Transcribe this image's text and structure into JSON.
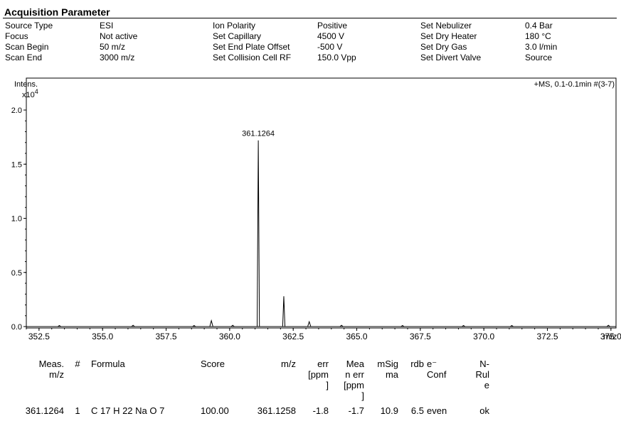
{
  "acquisition": {
    "title": "Acquisition Parameter",
    "columns": [
      {
        "labels": [
          "Source Type",
          "Focus",
          "Scan Begin",
          "Scan End"
        ],
        "values": [
          "ESI",
          "Not active",
          "50 m/z",
          "3000 m/z"
        ]
      },
      {
        "labels": [
          "Ion Polarity",
          "Set Capillary",
          "Set End Plate Offset",
          "Set Collision Cell RF"
        ],
        "values": [
          "Positive",
          "4500 V",
          "-500 V",
          "150.0 Vpp"
        ]
      },
      {
        "labels": [
          "Set Nebulizer",
          "Set Dry Heater",
          "Set Dry Gas",
          "Set Divert Valve"
        ],
        "values": [
          "0.4 Bar",
          "180 °C",
          "3.0 l/min",
          "Source"
        ]
      }
    ]
  },
  "chart_data": {
    "type": "line",
    "title": "+MS, 0.1-0.1min #(3-7)",
    "ylabel": "Intens.",
    "yscale_label": "x10",
    "yscale_exp": "4",
    "xunit": "m/z",
    "xlim": [
      352.0,
      375.2
    ],
    "ylim": [
      0,
      2.05
    ],
    "xticks": [
      352.5,
      355.0,
      357.5,
      360.0,
      362.5,
      365.0,
      367.5,
      370.0,
      372.5,
      375.0
    ],
    "xtick_labels": [
      "352.5",
      "355.0",
      "357.5",
      "360.0",
      "362.5",
      "365.0",
      "367.5",
      "370.0",
      "372.5",
      "375.0"
    ],
    "yticks": [
      0.0,
      0.5,
      1.0,
      1.5,
      2.0
    ],
    "ytick_labels": [
      "0.0",
      "0.5",
      "1.0",
      "1.5",
      "2.0"
    ],
    "peaks": [
      {
        "x": 361.1264,
        "y": 1.72,
        "label": "361.1264"
      },
      {
        "x": 362.13,
        "y": 0.28
      },
      {
        "x": 359.28,
        "y": 0.055
      },
      {
        "x": 363.13,
        "y": 0.045
      },
      {
        "x": 360.12,
        "y": 0.012
      },
      {
        "x": 353.3,
        "y": 0.01
      },
      {
        "x": 356.2,
        "y": 0.012
      },
      {
        "x": 358.6,
        "y": 0.01
      },
      {
        "x": 364.4,
        "y": 0.012
      },
      {
        "x": 366.8,
        "y": 0.01
      },
      {
        "x": 369.2,
        "y": 0.01
      },
      {
        "x": 371.1,
        "y": 0.01
      },
      {
        "x": 374.9,
        "y": 0.012
      }
    ]
  },
  "formula_table": {
    "headers": [
      "Meas.\nm/z",
      "#",
      "Formula",
      "Score",
      "m/z",
      "err\n[ppm\n]",
      "Mea\nn err\n[ppm\n]",
      "mSig\nma",
      "rdb",
      "e⁻\nConf",
      "N-\nRul\ne"
    ],
    "rows": [
      [
        "361.1264",
        "1",
        "C 17 H 22 Na O 7",
        "100.00",
        "361.1258",
        "-1.8",
        "-1.7",
        "10.9",
        "6.5",
        "even",
        "ok"
      ]
    ]
  }
}
